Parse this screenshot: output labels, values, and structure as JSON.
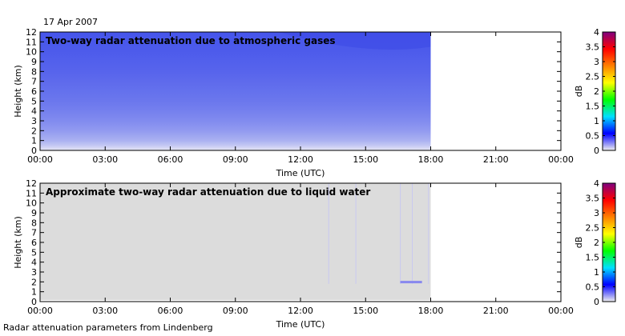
{
  "date_label": "17 Apr 2007",
  "footer_text": "Radar attenuation parameters from Lindenberg",
  "chart_data": [
    {
      "type": "heatmap",
      "title": "Two-way radar attenuation due to atmospheric gases",
      "xlabel": "Time (UTC)",
      "ylabel": "Height (km)",
      "x_ticks": [
        "00:00",
        "03:00",
        "06:00",
        "09:00",
        "12:00",
        "15:00",
        "18:00",
        "21:00",
        "00:00"
      ],
      "y_ticks": [
        "0",
        "1",
        "2",
        "3",
        "4",
        "5",
        "6",
        "7",
        "8",
        "9",
        "10",
        "11",
        "12"
      ],
      "xlim_hours": [
        0,
        24
      ],
      "ylim": [
        0,
        12
      ],
      "data_end_hour": 18,
      "colorbar": {
        "label": "dB",
        "ticks": [
          "0",
          "0.5",
          "1",
          "1.5",
          "2",
          "2.5",
          "3",
          "3.5",
          "4"
        ],
        "range": [
          0,
          4
        ]
      },
      "attenuation_db_by_height": {
        "height_km": [
          0,
          0.5,
          1,
          2,
          3,
          4,
          5,
          6,
          7,
          8,
          9,
          10,
          11,
          12
        ],
        "value_db": [
          0.05,
          0.25,
          0.4,
          0.55,
          0.65,
          0.72,
          0.78,
          0.82,
          0.86,
          0.9,
          0.93,
          0.96,
          0.98,
          1.0
        ]
      }
    },
    {
      "type": "heatmap",
      "title": "Approximate two-way radar attenuation due to liquid water",
      "xlabel": "Time (UTC)",
      "ylabel": "Height (km)",
      "x_ticks": [
        "00:00",
        "03:00",
        "06:00",
        "09:00",
        "12:00",
        "15:00",
        "18:00",
        "21:00",
        "00:00"
      ],
      "y_ticks": [
        "0",
        "1",
        "2",
        "3",
        "4",
        "5",
        "6",
        "7",
        "8",
        "9",
        "10",
        "11",
        "12"
      ],
      "xlim_hours": [
        0,
        24
      ],
      "ylim": [
        0,
        12
      ],
      "data_end_hour": 18,
      "fill_color": "#dcdcdc",
      "colorbar": {
        "label": "dB",
        "ticks": [
          "0",
          "0.5",
          "1",
          "1.5",
          "2",
          "2.5",
          "3",
          "3.5",
          "4"
        ],
        "range": [
          0,
          4
        ]
      }
    }
  ],
  "colormap_stops": [
    "#f0f0f0",
    "#0000ff",
    "#00e0ff",
    "#00ff00",
    "#ffff00",
    "#ff8000",
    "#ff0000",
    "#800080"
  ]
}
